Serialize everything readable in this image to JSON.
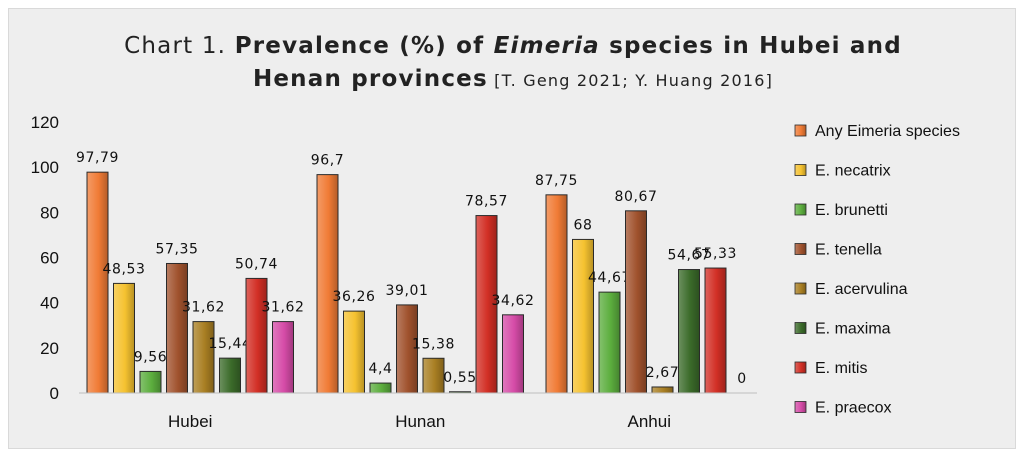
{
  "title": {
    "prefix": "Chart 1. ",
    "part1": "Prevalence (%) of ",
    "italic": "Eimeria",
    "part2": " species in Hubei and",
    "line2_bold": "Henan provinces",
    "line2_source": " [T. Geng 2021; Y. Huang 2016]"
  },
  "chart_data": {
    "type": "bar",
    "title": "Chart 1. Prevalence (%) of Eimeria species in Hubei and Henan provinces [T. Geng 2021; Y. Huang 2016]",
    "categories": [
      "Hubei",
      "Hunan",
      "Anhui"
    ],
    "ylim": [
      0,
      120
    ],
    "yticks": [
      0,
      20,
      40,
      60,
      80,
      100,
      120
    ],
    "grid": false,
    "legend_position": "right",
    "series": [
      {
        "name": "Any Eimeria species",
        "color": "#f07b35",
        "values": [
          97.79,
          96.7,
          87.75
        ],
        "labels": [
          "97,79",
          "96,7",
          "87,75"
        ]
      },
      {
        "name": "E. necatrix",
        "color": "#f5c230",
        "values": [
          48.53,
          36.26,
          68
        ],
        "labels": [
          "48,53",
          "36,26",
          "68"
        ]
      },
      {
        "name": "E. brunetti",
        "color": "#5cae3e",
        "values": [
          9.56,
          4.4,
          44.67
        ],
        "labels": [
          "9,56",
          "4,4",
          "44,67"
        ]
      },
      {
        "name": "E. tenella",
        "color": "#a0522d",
        "values": [
          57.35,
          39.01,
          80.67
        ],
        "labels": [
          "57,35",
          "39,01",
          "80,67"
        ]
      },
      {
        "name": "E. acervulina",
        "color": "#a97f23",
        "values": [
          31.62,
          15.38,
          2.67
        ],
        "labels": [
          "31,62",
          "15,38",
          "2,67"
        ]
      },
      {
        "name": "E. maxima",
        "color": "#3b6b2a",
        "values": [
          15.44,
          0.55,
          54.67
        ],
        "labels": [
          "15,44",
          "0,55",
          "54,67"
        ]
      },
      {
        "name": "E. mitis",
        "color": "#d22f25",
        "values": [
          50.74,
          78.57,
          55.33
        ],
        "labels": [
          "50,74",
          "78,57",
          "55,33"
        ]
      },
      {
        "name": "E. praecox",
        "color": "#d64ca8",
        "values": [
          31.62,
          34.62,
          0
        ],
        "labels": [
          "31,62",
          "34,62",
          "0"
        ]
      }
    ]
  }
}
